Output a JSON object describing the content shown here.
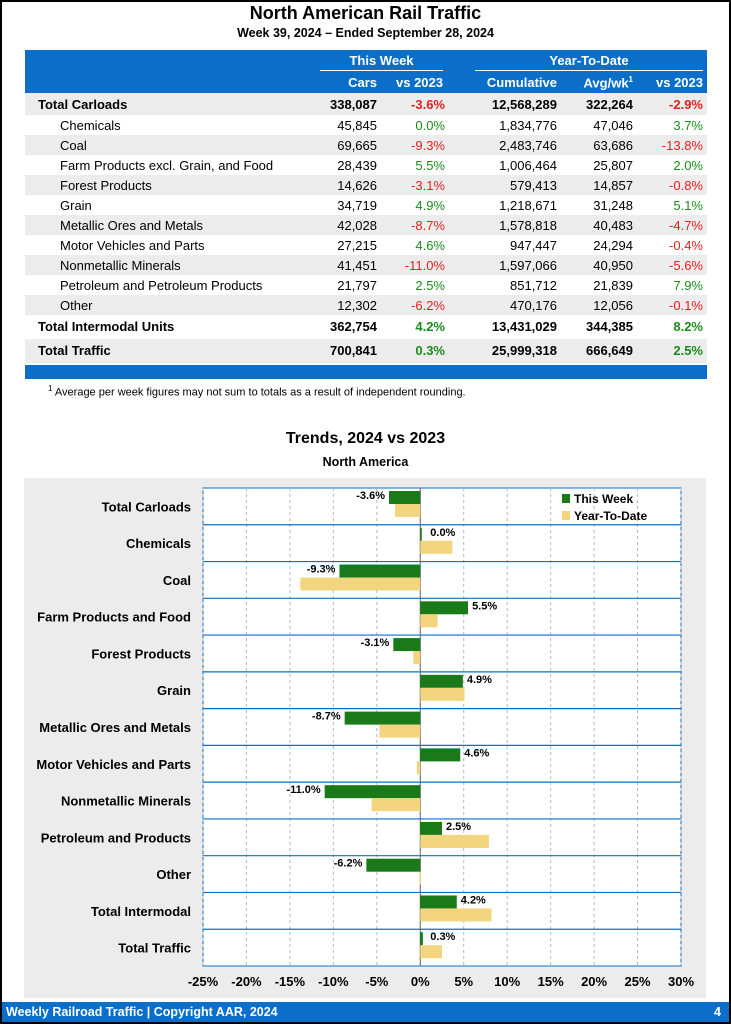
{
  "header": {
    "title": "North American Rail Traffic",
    "subtitle": "Week 39, 2024 – Ended September 28, 2024"
  },
  "table": {
    "group_this_week": "This Week",
    "group_ytd": "Year-To-Date",
    "col_cars": "Cars",
    "col_vs2023_week": "vs 2023",
    "col_cumulative": "Cumulative",
    "col_avgwk": "Avg/wk",
    "col_avgwk_sup": "1",
    "col_vs2023_ytd": "vs 2023",
    "rows": [
      {
        "label": "Total Carloads",
        "cars": "338,087",
        "wk": "-3.6%",
        "cum": "12,568,289",
        "avg": "322,264",
        "ytd": "-2.9%",
        "bold": true,
        "indent": false,
        "shade": true
      },
      {
        "label": "Chemicals",
        "cars": "45,845",
        "wk": "0.0%",
        "cum": "1,834,776",
        "avg": "47,046",
        "ytd": "3.7%",
        "bold": false,
        "indent": true,
        "shade": false
      },
      {
        "label": "Coal",
        "cars": "69,665",
        "wk": "-9.3%",
        "cum": "2,483,746",
        "avg": "63,686",
        "ytd": "-13.8%",
        "bold": false,
        "indent": true,
        "shade": true
      },
      {
        "label": "Farm Products excl. Grain, and Food",
        "cars": "28,439",
        "wk": "5.5%",
        "cum": "1,006,464",
        "avg": "25,807",
        "ytd": "2.0%",
        "bold": false,
        "indent": true,
        "shade": false
      },
      {
        "label": "Forest Products",
        "cars": "14,626",
        "wk": "-3.1%",
        "cum": "579,413",
        "avg": "14,857",
        "ytd": "-0.8%",
        "bold": false,
        "indent": true,
        "shade": true
      },
      {
        "label": "Grain",
        "cars": "34,719",
        "wk": "4.9%",
        "cum": "1,218,671",
        "avg": "31,248",
        "ytd": "5.1%",
        "bold": false,
        "indent": true,
        "shade": false
      },
      {
        "label": "Metallic Ores and Metals",
        "cars": "42,028",
        "wk": "-8.7%",
        "cum": "1,578,818",
        "avg": "40,483",
        "ytd": "-4.7%",
        "bold": false,
        "indent": true,
        "shade": true
      },
      {
        "label": "Motor Vehicles and Parts",
        "cars": "27,215",
        "wk": "4.6%",
        "cum": "947,447",
        "avg": "24,294",
        "ytd": "-0.4%",
        "bold": false,
        "indent": true,
        "shade": false
      },
      {
        "label": "Nonmetallic Minerals",
        "cars": "41,451",
        "wk": "-11.0%",
        "cum": "1,597,066",
        "avg": "40,950",
        "ytd": "-5.6%",
        "bold": false,
        "indent": true,
        "shade": true
      },
      {
        "label": "Petroleum and Petroleum Products",
        "cars": "21,797",
        "wk": "2.5%",
        "cum": "851,712",
        "avg": "21,839",
        "ytd": "7.9%",
        "bold": false,
        "indent": true,
        "shade": false
      },
      {
        "label": "Other",
        "cars": "12,302",
        "wk": "-6.2%",
        "cum": "470,176",
        "avg": "12,056",
        "ytd": "-0.1%",
        "bold": false,
        "indent": true,
        "shade": true
      },
      {
        "label": "Total Intermodal Units",
        "cars": "362,754",
        "wk": "4.2%",
        "cum": "13,431,029",
        "avg": "344,385",
        "ytd": "8.2%",
        "bold": true,
        "indent": false,
        "shade": false
      },
      {
        "label": "Total Traffic",
        "cars": "700,841",
        "wk": "0.3%",
        "cum": "25,999,318",
        "avg": "666,649",
        "ytd": "2.5%",
        "bold": true,
        "indent": false,
        "shade": true
      }
    ],
    "footnote_sup": "1",
    "footnote": "Average per week figures may not sum to totals as a result of independent rounding."
  },
  "chart_data": {
    "type": "bar",
    "orientation": "horizontal",
    "title": "Trends, 2024 vs 2023",
    "subtitle": "North America",
    "categories": [
      "Total Carloads",
      "Chemicals",
      "Coal",
      "Farm Products and Food",
      "Forest Products",
      "Grain",
      "Metallic Ores and Metals",
      "Motor Vehicles and Parts",
      "Nonmetallic Minerals",
      "Petroleum and Products",
      "Other",
      "Total Intermodal",
      "Total Traffic"
    ],
    "series": [
      {
        "name": "This Week",
        "color": "#1a7a1a",
        "values": [
          -3.6,
          0.0,
          -9.3,
          5.5,
          -3.1,
          4.9,
          -8.7,
          4.6,
          -11.0,
          2.5,
          -6.2,
          4.2,
          0.3
        ]
      },
      {
        "name": "Year-To-Date",
        "color": "#f2d57e",
        "values": [
          -2.9,
          3.7,
          -13.8,
          2.0,
          -0.8,
          5.1,
          -4.7,
          -0.4,
          -5.6,
          7.9,
          -0.1,
          8.2,
          2.5
        ]
      }
    ],
    "data_labels": [
      "-3.6%",
      "0.0%",
      "-9.3%",
      "5.5%",
      "-3.1%",
      "4.9%",
      "-8.7%",
      "4.6%",
      "-11.0%",
      "2.5%",
      "-6.2%",
      "4.2%",
      "0.3%"
    ],
    "xlim": [
      -25,
      30
    ],
    "xticks": [
      -25,
      -20,
      -15,
      -10,
      -5,
      0,
      5,
      10,
      15,
      20,
      25,
      30
    ],
    "xtick_labels": [
      "-25%",
      "-20%",
      "-15%",
      "-10%",
      "-5%",
      "0%",
      "5%",
      "10%",
      "15%",
      "20%",
      "25%",
      "30%"
    ],
    "grid": true,
    "legend": "top-right"
  },
  "footer": {
    "text": "Weekly Railroad Traffic | Copyright AAR, 2024",
    "page": "4"
  }
}
